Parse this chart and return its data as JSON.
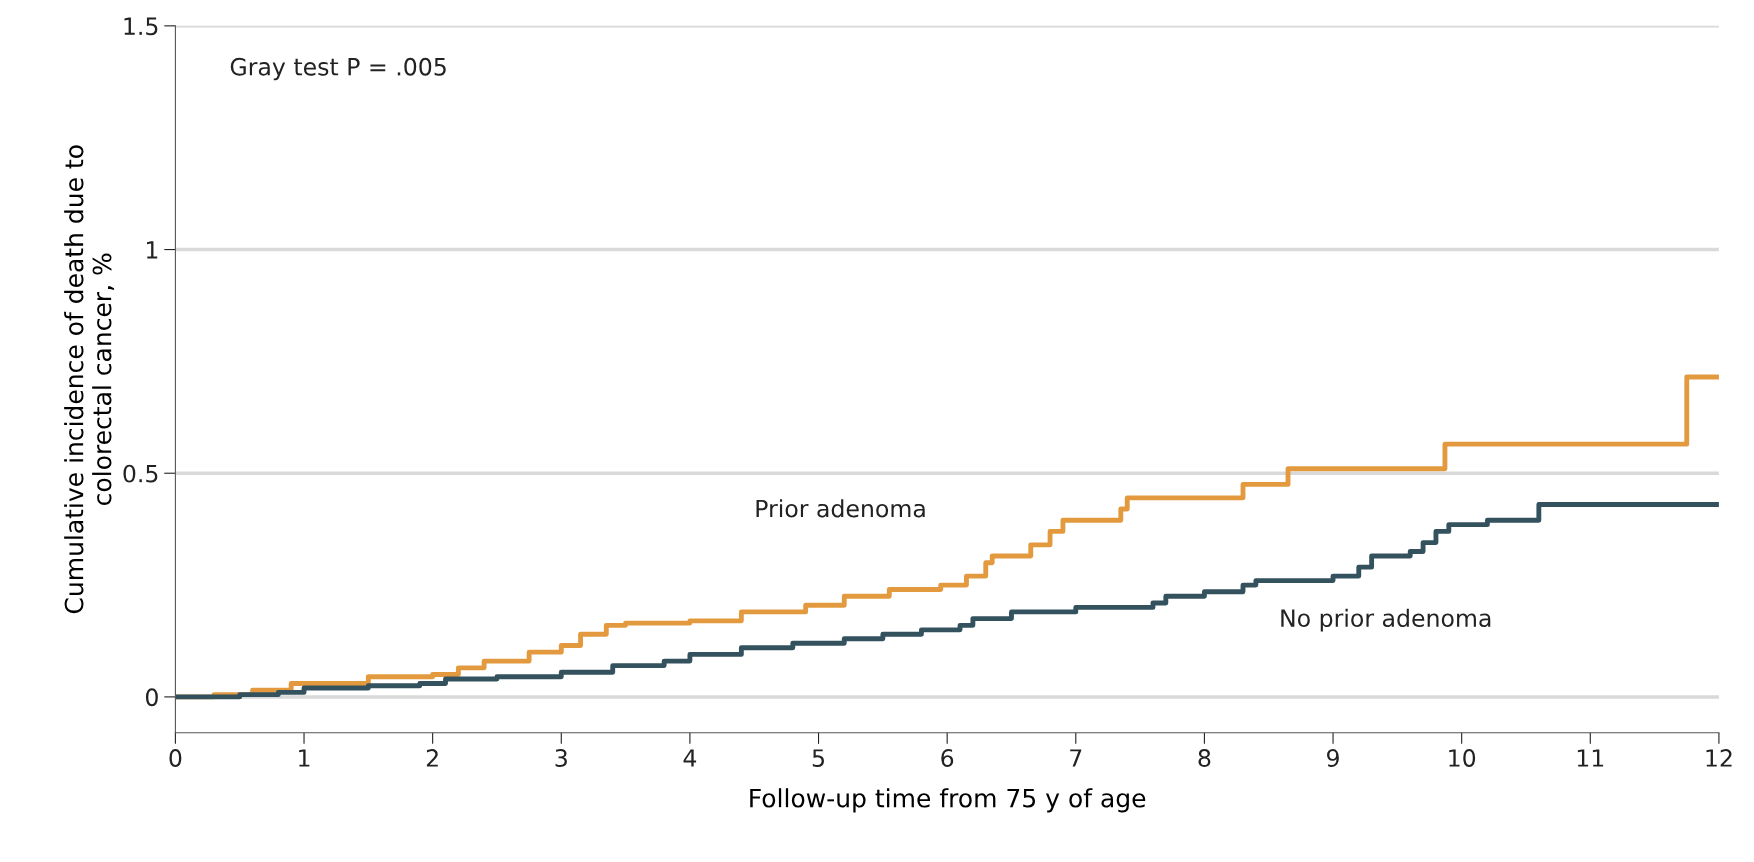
{
  "chart_data": {
    "type": "step",
    "xlabel": "Follow-up time from 75 y of age",
    "ylabel": "Cumulative incidence of death due to\ncolorectal cancer, %",
    "annotations": [
      "Gray test P = .005"
    ],
    "xlim": [
      0,
      12
    ],
    "ylim": [
      -0.08,
      1.5
    ],
    "xticks": [
      0,
      1,
      2,
      3,
      4,
      5,
      6,
      7,
      8,
      9,
      10,
      11,
      12
    ],
    "yticks": [
      0,
      0.5,
      1,
      1.5
    ],
    "grid": "y",
    "legend": false,
    "line_style": "solid",
    "marker": "none",
    "series": [
      {
        "name": "Prior adenoma",
        "color": "#e39a3f",
        "x": [
          0,
          0.3,
          0.6,
          0.9,
          1.5,
          2.0,
          2.2,
          2.4,
          2.75,
          3.0,
          3.15,
          3.35,
          3.5,
          4.0,
          4.4,
          4.9,
          5.2,
          5.55,
          5.95,
          6.15,
          6.3,
          6.35,
          6.65,
          6.8,
          6.9,
          7.35,
          7.4,
          8.3,
          8.65,
          9.87,
          11.75,
          12
        ],
        "values": [
          0,
          0.005,
          0.015,
          0.03,
          0.045,
          0.05,
          0.065,
          0.08,
          0.1,
          0.115,
          0.14,
          0.16,
          0.165,
          0.17,
          0.19,
          0.205,
          0.225,
          0.24,
          0.25,
          0.27,
          0.3,
          0.315,
          0.34,
          0.37,
          0.395,
          0.42,
          0.445,
          0.475,
          0.51,
          0.565,
          0.715,
          0.715
        ]
      },
      {
        "name": "No prior adenoma",
        "color": "#33525e",
        "x": [
          0,
          0.5,
          0.8,
          1.0,
          1.5,
          1.9,
          2.1,
          2.5,
          3.0,
          3.4,
          3.8,
          4.0,
          4.4,
          4.8,
          5.2,
          5.5,
          5.8,
          6.1,
          6.2,
          6.5,
          7.0,
          7.6,
          7.7,
          8.0,
          8.3,
          8.4,
          9.0,
          9.2,
          9.3,
          9.6,
          9.7,
          9.8,
          9.9,
          10.2,
          10.6,
          12
        ],
        "values": [
          0,
          0.005,
          0.01,
          0.02,
          0.025,
          0.03,
          0.04,
          0.045,
          0.055,
          0.07,
          0.08,
          0.095,
          0.11,
          0.12,
          0.13,
          0.14,
          0.15,
          0.16,
          0.175,
          0.19,
          0.2,
          0.21,
          0.225,
          0.235,
          0.25,
          0.26,
          0.27,
          0.29,
          0.315,
          0.325,
          0.345,
          0.37,
          0.385,
          0.395,
          0.43,
          0.43
        ]
      }
    ]
  }
}
